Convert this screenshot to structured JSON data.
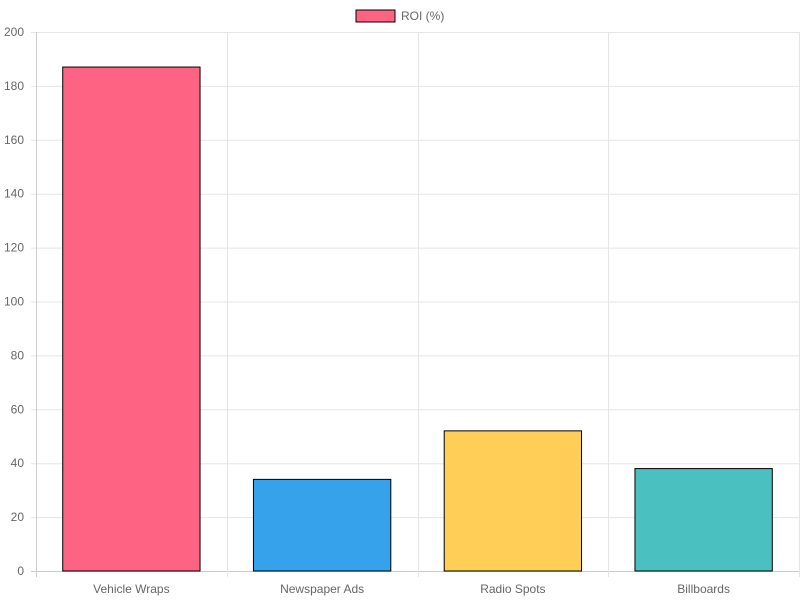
{
  "chart_data": {
    "type": "bar",
    "title": "",
    "xlabel": "",
    "ylabel": "",
    "categories": [
      "Vehicle Wraps",
      "Newspaper Ads",
      "Radio Spots",
      "Billboards"
    ],
    "series": [
      {
        "name": "ROI (%)",
        "values": [
          187,
          34,
          52,
          38
        ],
        "colors": [
          "#ff6384",
          "#36a2eb",
          "#ffce56",
          "#4bc0c0"
        ],
        "border_color": "#000000"
      }
    ],
    "ylim": [
      0,
      200
    ],
    "yticks": [
      0,
      20,
      40,
      60,
      80,
      100,
      120,
      140,
      160,
      180,
      200
    ],
    "grid": true,
    "legend": "top-center",
    "legend_swatch_color": "#ff6384"
  }
}
